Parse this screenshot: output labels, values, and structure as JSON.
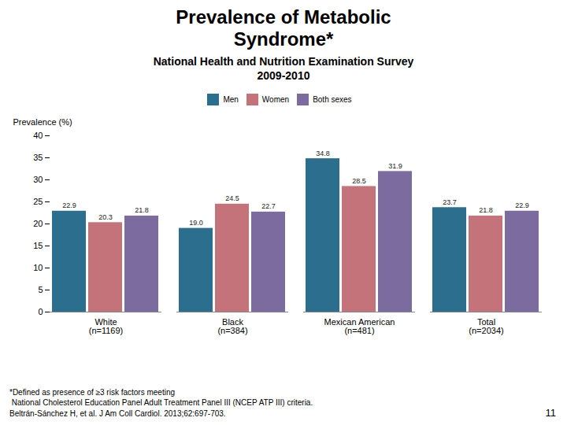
{
  "chart_data": {
    "type": "bar",
    "title": "Prevalence of Metabolic\nSyndrome*",
    "subtitle": "National Health and Nutrition Examination Survey\n2009-2010",
    "categories": [
      "White\n(n=1169)",
      "Black\n(n=384)",
      "Mexican American\n(n=481)",
      "Total\n(n=2034)"
    ],
    "series": [
      {
        "name": "Men",
        "color": "#2B6E8E",
        "values": [
          22.9,
          19.0,
          34.8,
          23.7
        ],
        "value_labels": [
          "22.9",
          "19.0",
          "34.8",
          "23.7"
        ]
      },
      {
        "name": "Women",
        "color": "#C4737A",
        "values": [
          20.3,
          24.5,
          28.5,
          21.8
        ],
        "value_labels": [
          "20.3",
          "24.5",
          "28.5",
          "21.8"
        ]
      },
      {
        "name": "Both sexes",
        "color": "#7B6B9E",
        "values": [
          21.8,
          22.7,
          31.9,
          22.9
        ],
        "value_labels": [
          "21.8",
          "22.7",
          "31.9",
          "22.9"
        ]
      }
    ],
    "ylabel": "Prevalence (%)",
    "ylim": [
      0,
      40
    ],
    "yticks": [
      0,
      5,
      10,
      15,
      20,
      25,
      30,
      35,
      40
    ],
    "grid": false,
    "legend": "top",
    "data_labels": true,
    "footnotes": [
      "*Defined as presence of ≥3 risk factors meeting",
      " National Cholesterol Education Panel Adult Treatment Panel III (NCEP ATP III) criteria.",
      "Beltrán-Sánchez H, et al. J Am Coll Cardiol. 2013;62:697-703."
    ],
    "page_number": "11"
  }
}
